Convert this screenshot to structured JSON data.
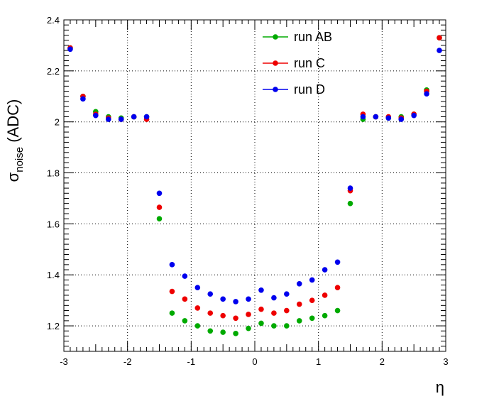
{
  "chart_data": {
    "type": "scatter",
    "title": "",
    "xlabel": "η",
    "ylabel_symbol": "σ",
    "ylabel_subscript": "noise",
    "ylabel_unit": " (ADC)",
    "xlim": [
      -3,
      3
    ],
    "ylim": [
      1.1,
      2.4
    ],
    "xticks": [
      -3,
      -2,
      -1,
      0,
      1,
      2,
      3
    ],
    "xtick_labels": [
      "-3",
      "-2",
      "-1",
      "0",
      "1",
      "2",
      "3"
    ],
    "yticks": [
      1.2,
      1.4,
      1.6,
      1.8,
      2.0,
      2.2,
      2.4
    ],
    "ytick_labels": [
      "1.2",
      "1.4",
      "1.6",
      "1.8",
      "2",
      "2.2",
      "2.4"
    ],
    "grid": true,
    "legend_position": "top-center",
    "x": [
      -2.9,
      -2.7,
      -2.5,
      -2.3,
      -2.1,
      -1.9,
      -1.7,
      -1.5,
      -1.3,
      -1.1,
      -0.9,
      -0.7,
      -0.5,
      -0.3,
      -0.1,
      0.1,
      0.3,
      0.5,
      0.7,
      0.9,
      1.1,
      1.3,
      1.5,
      1.7,
      1.9,
      2.1,
      2.3,
      2.5,
      2.7,
      2.9
    ],
    "series": [
      {
        "name": "run AB",
        "color": "#00aa00",
        "values": [
          2.29,
          2.1,
          2.04,
          2.02,
          2.015,
          2.02,
          2.02,
          1.62,
          1.25,
          1.22,
          1.2,
          1.18,
          1.175,
          1.17,
          1.19,
          1.21,
          1.2,
          1.2,
          1.22,
          1.23,
          1.24,
          1.26,
          1.68,
          2.01,
          2.02,
          2.015,
          2.02,
          2.03,
          2.125,
          2.33
        ]
      },
      {
        "name": "run C",
        "color": "#ee0000",
        "values": [
          2.29,
          2.1,
          2.03,
          2.015,
          2.01,
          2.02,
          2.01,
          1.665,
          1.335,
          1.305,
          1.27,
          1.25,
          1.24,
          1.23,
          1.245,
          1.265,
          1.25,
          1.26,
          1.285,
          1.3,
          1.32,
          1.35,
          1.73,
          2.03,
          2.02,
          2.02,
          2.015,
          2.03,
          2.12,
          2.33
        ]
      },
      {
        "name": "run D",
        "color": "#0000ee",
        "values": [
          2.285,
          2.09,
          2.025,
          2.01,
          2.01,
          2.02,
          2.02,
          1.72,
          1.44,
          1.395,
          1.35,
          1.325,
          1.305,
          1.295,
          1.305,
          1.34,
          1.31,
          1.325,
          1.365,
          1.38,
          1.42,
          1.45,
          1.74,
          2.02,
          2.02,
          2.015,
          2.01,
          2.025,
          2.11,
          2.28
        ]
      }
    ]
  }
}
